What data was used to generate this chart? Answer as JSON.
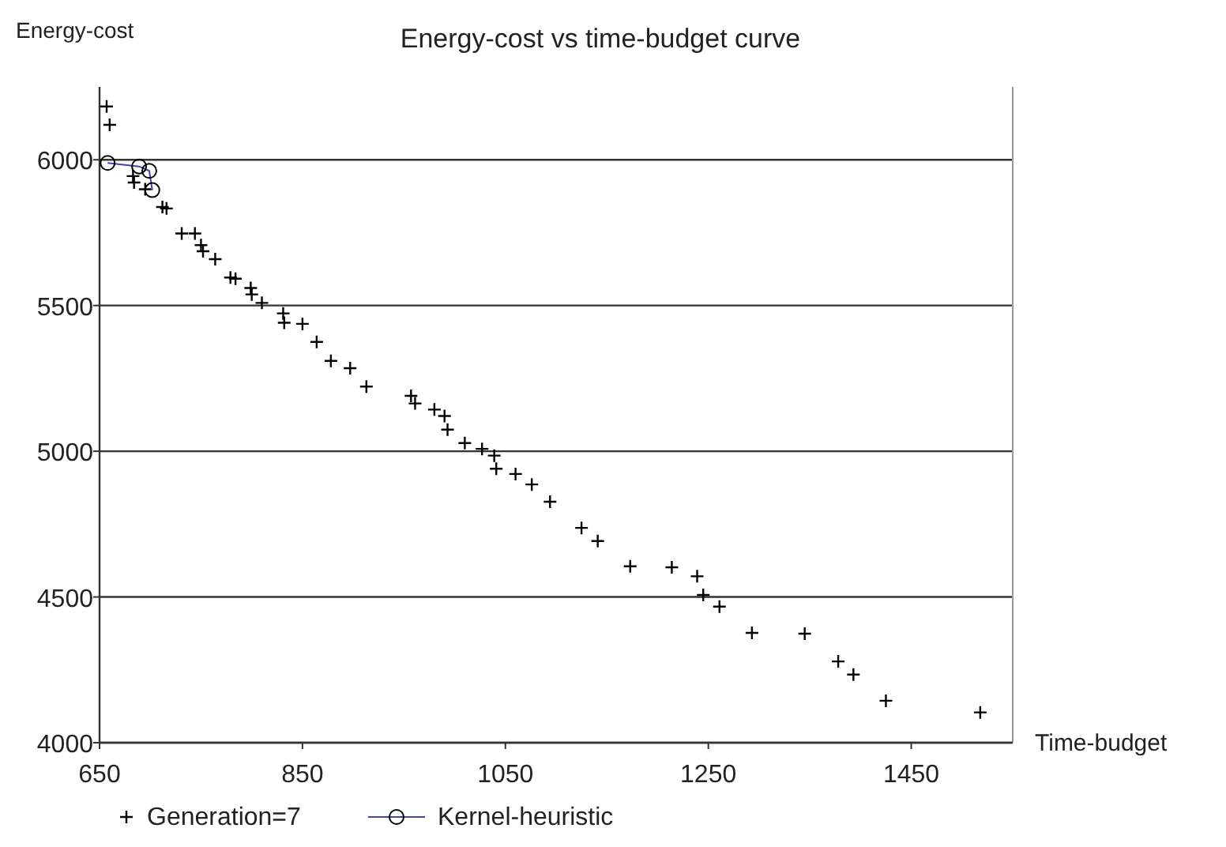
{
  "chart_data": {
    "type": "scatter",
    "title": "Energy-cost vs time-budget curve",
    "xlabel": "Time-budget",
    "ylabel": "Energy-cost",
    "xlim": [
      650,
      1550
    ],
    "xticks": [
      650,
      850,
      1050,
      1250,
      1450
    ],
    "ylim": [
      4000,
      6250
    ],
    "yticks": [
      4000,
      4500,
      5000,
      5500,
      6000
    ],
    "grid": "y",
    "legend": "bottom",
    "series": [
      {
        "name": "Generation=7",
        "type": "scatter",
        "marker": "cross",
        "color": "#000000",
        "x": [
          657,
          660,
          683,
          684,
          695,
          712,
          716,
          731,
          744,
          750,
          752,
          764,
          779,
          784,
          799,
          800,
          810,
          831,
          832,
          850,
          864,
          878,
          897,
          913,
          957,
          961,
          980,
          990,
          993,
          1010,
          1027,
          1039,
          1041,
          1060,
          1076,
          1094,
          1125,
          1141,
          1173,
          1214,
          1239,
          1245,
          1261,
          1293,
          1345,
          1378,
          1393,
          1425,
          1518
        ],
        "values": [
          6183,
          6120,
          5944,
          5922,
          5899,
          5838,
          5833,
          5747,
          5747,
          5707,
          5686,
          5659,
          5596,
          5592,
          5560,
          5538,
          5509,
          5473,
          5441,
          5437,
          5375,
          5310,
          5285,
          5222,
          5190,
          5164,
          5143,
          5121,
          5074,
          5028,
          5008,
          4985,
          4940,
          4922,
          4886,
          4827,
          4737,
          4692,
          4605,
          4602,
          4571,
          4507,
          4467,
          4377,
          4374,
          4279,
          4234,
          4144,
          4104
        ]
      },
      {
        "name": "Kernel-heuristic",
        "type": "line",
        "marker": "circle",
        "color": "#4444aa",
        "x": [
          658,
          689,
          699,
          702
        ],
        "values": [
          5989,
          5977,
          5962,
          5896
        ]
      }
    ]
  }
}
